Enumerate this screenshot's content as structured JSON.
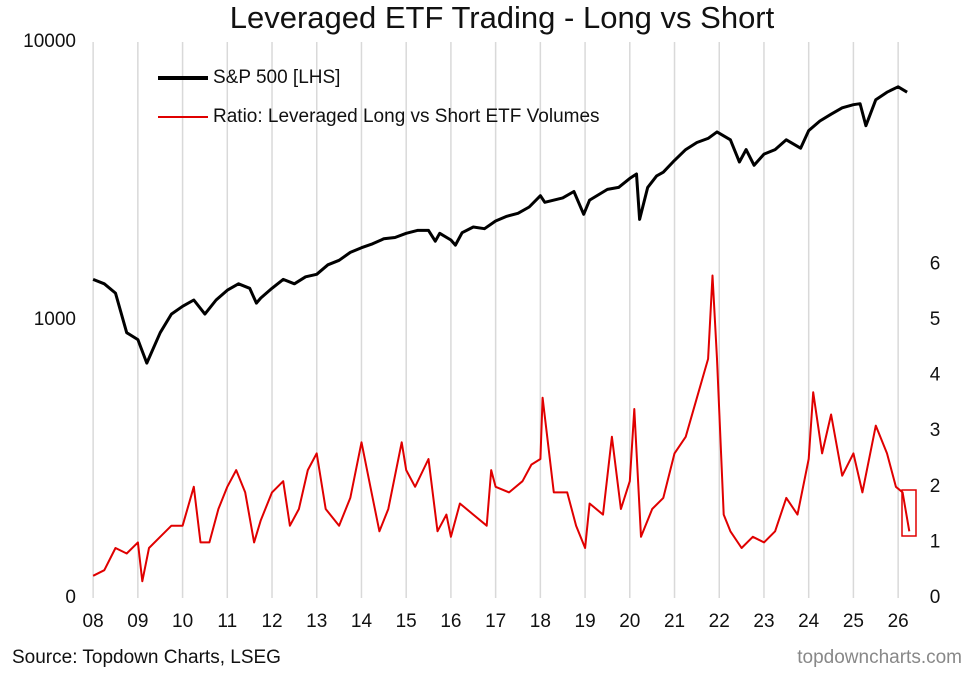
{
  "chart_data": {
    "type": "line",
    "title": "Leveraged ETF Trading - Long vs Short",
    "source": "Source: Topdown Charts, LSEG",
    "watermark": "topdowncharts.com",
    "legend": "top-left",
    "grid": true,
    "log_y": true,
    "xlim": [
      2007.93,
      2026.31
    ],
    "xticks": [
      {
        "value": 2008,
        "label": "08"
      },
      {
        "value": 2009,
        "label": "09"
      },
      {
        "value": 2010,
        "label": "10"
      },
      {
        "value": 2011,
        "label": "11"
      },
      {
        "value": 2012,
        "label": "12"
      },
      {
        "value": 2013,
        "label": "13"
      },
      {
        "value": 2014,
        "label": "14"
      },
      {
        "value": 2015,
        "label": "15"
      },
      {
        "value": 2016,
        "label": "16"
      },
      {
        "value": 2017,
        "label": "17"
      },
      {
        "value": 2018,
        "label": "18"
      },
      {
        "value": 2019,
        "label": "19"
      },
      {
        "value": 2020,
        "label": "20"
      },
      {
        "value": 2021,
        "label": "21"
      },
      {
        "value": 2022,
        "label": "22"
      },
      {
        "value": 2023,
        "label": "23"
      },
      {
        "value": 2024,
        "label": "24"
      },
      {
        "value": 2025,
        "label": "25"
      },
      {
        "value": 2026,
        "label": "26"
      }
    ],
    "ylim": [
      100,
      10000
    ],
    "yticks": [
      {
        "value": 100,
        "label": "0"
      },
      1000,
      10000
    ],
    "y2lim": [
      0,
      10
    ],
    "y2ticks": [
      0,
      1,
      2,
      3,
      4,
      5,
      6
    ],
    "series": [
      {
        "name": "S&P 500 [LHS]",
        "color": "#000000",
        "axis": "y",
        "x": [
          2008,
          2008.25,
          2008.5,
          2008.75,
          2009,
          2009.2,
          2009.5,
          2009.75,
          2010,
          2010.25,
          2010.5,
          2010.75,
          2011,
          2011.25,
          2011.5,
          2011.65,
          2011.75,
          2012,
          2012.25,
          2012.5,
          2012.75,
          2013,
          2013.25,
          2013.5,
          2013.75,
          2014,
          2014.25,
          2014.5,
          2014.75,
          2015,
          2015.25,
          2015.5,
          2015.65,
          2015.75,
          2016,
          2016.1,
          2016.25,
          2016.5,
          2016.75,
          2017,
          2017.25,
          2017.5,
          2017.75,
          2018,
          2018.1,
          2018.5,
          2018.75,
          2018.97,
          2019.1,
          2019.5,
          2019.75,
          2020,
          2020.15,
          2020.22,
          2020.4,
          2020.6,
          2020.75,
          2021,
          2021.25,
          2021.5,
          2021.75,
          2021.95,
          2022.25,
          2022.45,
          2022.6,
          2022.78,
          2023,
          2023.25,
          2023.5,
          2023.82,
          2024,
          2024.25,
          2024.5,
          2024.75,
          2025,
          2025.15,
          2025.28,
          2025.5,
          2025.75,
          2026,
          2026.2
        ],
        "values": [
          1400,
          1350,
          1250,
          900,
          850,
          700,
          900,
          1050,
          1120,
          1180,
          1050,
          1180,
          1280,
          1350,
          1300,
          1150,
          1200,
          1300,
          1400,
          1350,
          1430,
          1460,
          1580,
          1640,
          1750,
          1820,
          1880,
          1960,
          1980,
          2050,
          2100,
          2100,
          1920,
          2050,
          1940,
          1860,
          2060,
          2160,
          2130,
          2270,
          2360,
          2420,
          2550,
          2800,
          2650,
          2750,
          2900,
          2400,
          2700,
          2950,
          3000,
          3230,
          3350,
          2300,
          3000,
          3300,
          3400,
          3750,
          4100,
          4350,
          4500,
          4750,
          4450,
          3700,
          4100,
          3600,
          3950,
          4100,
          4450,
          4150,
          4800,
          5200,
          5500,
          5800,
          5950,
          6000,
          5000,
          6200,
          6600,
          6900,
          6600
        ]
      },
      {
        "name": "Ratio: Leveraged Long vs Short ETF Volumes",
        "color": "#e00000",
        "axis": "y2",
        "x": [
          2008,
          2008.25,
          2008.5,
          2008.75,
          2009,
          2009.1,
          2009.25,
          2009.5,
          2009.75,
          2010,
          2010.25,
          2010.4,
          2010.6,
          2010.8,
          2011,
          2011.2,
          2011.4,
          2011.6,
          2011.75,
          2012,
          2012.25,
          2012.4,
          2012.6,
          2012.8,
          2013,
          2013.2,
          2013.5,
          2013.75,
          2014,
          2014.2,
          2014.4,
          2014.6,
          2014.9,
          2015,
          2015.2,
          2015.5,
          2015.7,
          2015.9,
          2016,
          2016.2,
          2016.5,
          2016.8,
          2016.9,
          2017,
          2017.3,
          2017.6,
          2017.8,
          2018,
          2018.05,
          2018.3,
          2018.6,
          2018.8,
          2019,
          2019.1,
          2019.4,
          2019.6,
          2019.8,
          2020,
          2020.1,
          2020.25,
          2020.5,
          2020.75,
          2021,
          2021.25,
          2021.5,
          2021.75,
          2021.85,
          2021.95,
          2022.1,
          2022.25,
          2022.5,
          2022.75,
          2023,
          2023.25,
          2023.5,
          2023.75,
          2024,
          2024.1,
          2024.3,
          2024.5,
          2024.75,
          2025,
          2025.2,
          2025.5,
          2025.75,
          2025.95,
          2026.1,
          2026.25
        ],
        "values": [
          0.4,
          0.5,
          0.9,
          0.8,
          1.0,
          0.3,
          0.9,
          1.1,
          1.3,
          1.3,
          2.0,
          1.0,
          1.0,
          1.6,
          2.0,
          2.3,
          1.9,
          1.0,
          1.4,
          1.9,
          2.1,
          1.3,
          1.6,
          2.3,
          2.6,
          1.6,
          1.3,
          1.8,
          2.8,
          2.0,
          1.2,
          1.6,
          2.8,
          2.3,
          2.0,
          2.5,
          1.2,
          1.5,
          1.1,
          1.7,
          1.5,
          1.3,
          2.3,
          2.0,
          1.9,
          2.1,
          2.4,
          2.5,
          3.6,
          1.9,
          1.9,
          1.3,
          0.9,
          1.7,
          1.5,
          2.9,
          1.6,
          2.1,
          3.4,
          1.1,
          1.6,
          1.8,
          2.6,
          2.9,
          3.6,
          4.3,
          5.8,
          4.3,
          1.5,
          1.2,
          0.9,
          1.1,
          1.0,
          1.2,
          1.8,
          1.5,
          2.5,
          3.7,
          2.6,
          3.3,
          2.2,
          2.6,
          1.9,
          3.1,
          2.6,
          2.0,
          1.9,
          1.2
        ]
      }
    ]
  }
}
